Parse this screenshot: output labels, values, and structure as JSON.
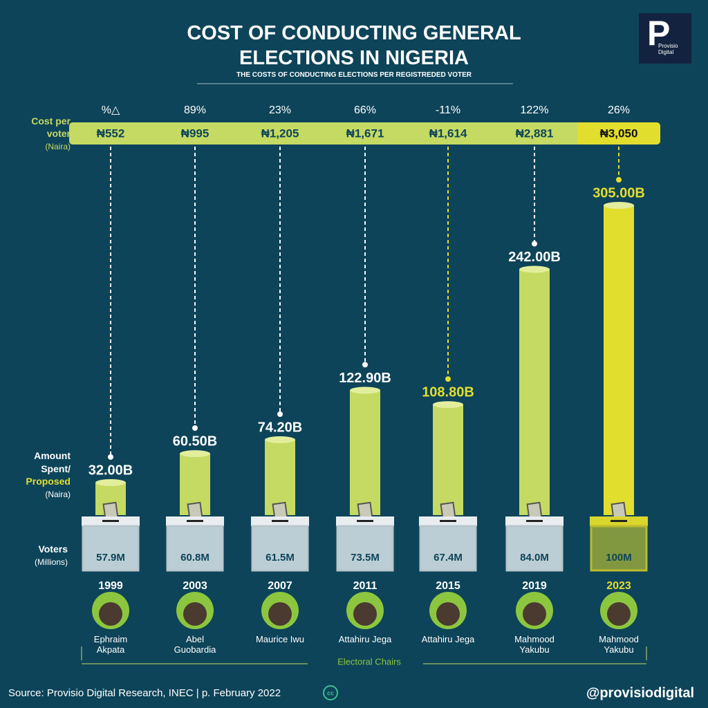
{
  "chart_data": {
    "type": "bar",
    "title": "COST OF CONDUCTING GENERAL ELECTIONS IN NIGERIA",
    "subtitle": "THE COSTS OF CONDUCTING ELECTIONS PER REGISTREDED VOTER",
    "categories": [
      "1999",
      "2003",
      "2007",
      "2011",
      "2015",
      "2019",
      "2023"
    ],
    "values": [
      32.0,
      60.5,
      74.2,
      122.9,
      108.8,
      242.0,
      305.0
    ],
    "value_labels": [
      "32.00B",
      "60.50B",
      "74.20B",
      "122.90B",
      "108.80B",
      "242.00B",
      "305.00B"
    ],
    "bar_colors": [
      "#c5da62",
      "#c5da62",
      "#c5da62",
      "#c5da62",
      "#c5da62",
      "#c5da62",
      "#e2de2e"
    ],
    "label_colors": [
      "#ffffff",
      "#ffffff",
      "#ffffff",
      "#ffffff",
      "#e2de2e",
      "#ffffff",
      "#e2de2e"
    ],
    "change_header": "%△",
    "change": [
      null,
      89,
      23,
      66,
      -11,
      122,
      26
    ],
    "change_labels": [
      null,
      "89%",
      "23%",
      "66%",
      "-11%",
      "122%",
      "26%"
    ],
    "cost_per_voter": [
      552,
      995,
      1205,
      1671,
      1614,
      2881,
      3050
    ],
    "cost_labels": [
      "₦552",
      "₦995",
      "₦1,205",
      "₦1,671",
      "₦1,614",
      "₦2,881",
      "₦3,050"
    ],
    "cost_colors": [
      "#c5da62",
      "#c5da62",
      "#c5da62",
      "#c5da62",
      "#c5da62",
      "#c5da62",
      "#e2de2e"
    ],
    "voters": [
      57.9,
      60.8,
      61.5,
      73.5,
      67.4,
      84.0,
      100
    ],
    "voter_labels": [
      "57.9M",
      "60.8M",
      "61.5M",
      "73.5M",
      "67.4M",
      "84.0M",
      "100M"
    ],
    "chairs": [
      "Ephraim Akpata",
      "Abel Guobardia",
      "Maurice Iwu",
      "Attahiru Jega",
      "Attahiru Jega",
      "Mahmood Yakubu",
      "Mahmood Yakubu"
    ],
    "row_labels": {
      "cost": {
        "title": "Cost per voter",
        "unit": "(Naira)"
      },
      "amount": {
        "title": "Amount Spent/",
        "proposed": "Proposed",
        "unit": "(Naira)"
      },
      "voters": {
        "title": "Voters",
        "unit": "(Millions)"
      }
    },
    "chairs_label": "Electoral Chairs",
    "source": "Source: Provisio Digital Research, INEC | p. February 2022",
    "cc": "cc",
    "handle": "@provisiodigital",
    "logo": {
      "letter": "P",
      "name": "Provisio Digital"
    }
  }
}
